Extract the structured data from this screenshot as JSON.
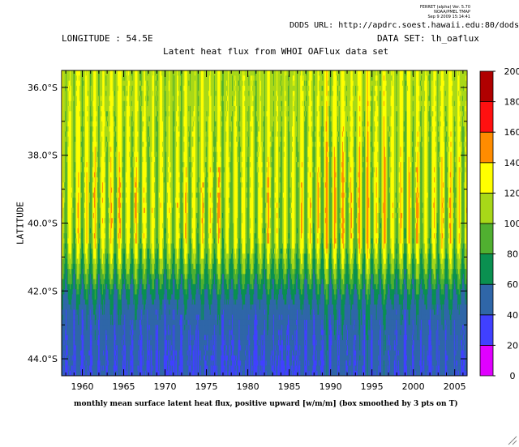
{
  "header": {
    "ferret_version": "FERRET (alpha) Ver. 5.70",
    "ferret_org": "NOAA/PMEL TMAP",
    "ferret_date": "Sep  9 2009 15:14:41",
    "dods_url": "DODS URL: http://apdrc.soest.hawaii.edu:80/dods/",
    "longitude": "LONGITUDE : 54.5E",
    "dataset": "DATA SET: lh_oaflux"
  },
  "chart_data": {
    "type": "heatmap",
    "title": "Latent heat flux from WHOI OAFlux data set",
    "xlabel": "monthly mean surface latent heat flux, positive upward [w/m/m] (box smoothed by 3 pts on T)",
    "ylabel": "LATITUDE",
    "xlim": [
      1957.5,
      2006.5
    ],
    "ylim": [
      -44.5,
      -35.5
    ],
    "x_ticks": [
      "1960",
      "1965",
      "1970",
      "1975",
      "1980",
      "1985",
      "1990",
      "1995",
      "2000",
      "2005"
    ],
    "x_tick_values": [
      1960,
      1965,
      1970,
      1975,
      1980,
      1985,
      1990,
      1995,
      2000,
      2005
    ],
    "y_ticks": [
      "36.0°S",
      "38.0°S",
      "40.0°S",
      "42.0°S",
      "44.0°S"
    ],
    "y_tick_values": [
      -36,
      -38,
      -40,
      -42,
      -44
    ],
    "colorbar": {
      "levels": [
        0,
        20,
        40,
        60,
        80,
        100,
        120,
        140,
        160,
        180,
        200
      ],
      "labels": [
        "0",
        "20",
        "40",
        "60",
        "80",
        "100",
        "120",
        "140",
        "160",
        "180",
        "200"
      ],
      "colors": [
        "#e000ff",
        "#4040ff",
        "#2f66a8",
        "#0a9050",
        "#50b030",
        "#a8d818",
        "#ffff00",
        "#ff8c00",
        "#ff1010",
        "#b00000"
      ]
    },
    "description_profile": {
      "lat": [
        -35.5,
        -36.5,
        -37.5,
        -38.5,
        -39.5,
        -40.5,
        -41.0,
        -41.5,
        -42.0,
        -42.5,
        -43.0,
        -43.5,
        -44.5
      ],
      "summer_min": [
        100,
        100,
        95,
        92,
        88,
        82,
        75,
        62,
        52,
        44,
        40,
        38,
        36
      ],
      "winter_max": [
        125,
        128,
        132,
        138,
        142,
        140,
        125,
        105,
        80,
        62,
        55,
        50,
        45
      ]
    }
  }
}
